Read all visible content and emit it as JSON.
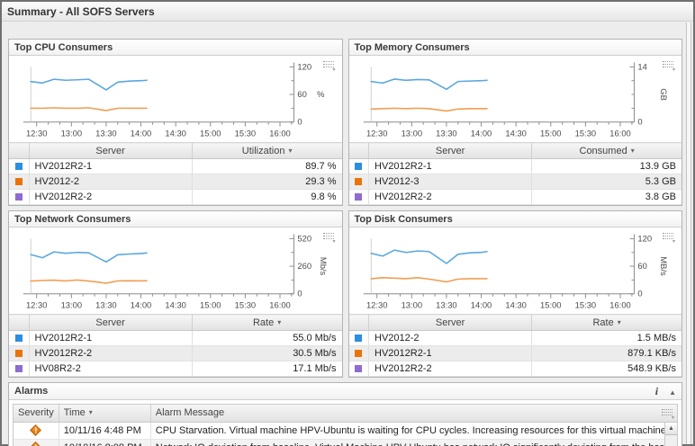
{
  "header": {
    "title": "Summary - All SOFS Servers"
  },
  "icons": {
    "sort_desc": "▾",
    "info": "i",
    "collapse": "▲",
    "scroll_up": "▲",
    "chart_options_arrow": "▾",
    "warning_glyph": "!"
  },
  "panels": [
    {
      "title": "Top CPU Consumers",
      "chart": {
        "type": "line",
        "unit": "%",
        "ylim": [
          0,
          120
        ],
        "y_ticks_labeled": [
          0,
          60,
          120
        ],
        "y_ticks_minor": [
          30,
          90
        ],
        "x_ticks_labeled": [
          "12:30",
          "13:00",
          "13:30",
          "14:00",
          "14:30",
          "15:00",
          "15:30",
          "16:00"
        ],
        "x_range": [
          "12:20",
          "16:12"
        ],
        "x": [
          "12:25",
          "12:35",
          "12:45",
          "12:55",
          "13:05",
          "13:15",
          "13:30",
          "13:40",
          "13:50",
          "14:00",
          "14:05"
        ],
        "series": [
          {
            "name": "HV2012R2-1",
            "color": "#5aa7e0",
            "values": [
              88,
              85,
              93,
              91,
              92,
              93,
              70,
              87,
              89,
              90,
              91
            ]
          },
          {
            "name": "HV2012-2",
            "color": "#f29d52",
            "values": [
              30,
              30,
              31,
              30,
              30,
              31,
              25,
              30,
              30,
              30,
              30
            ]
          }
        ]
      },
      "table": {
        "server_header": "Server",
        "value_header": "Utilization",
        "rows": [
          {
            "color": "#2b8ee0",
            "server": "HV2012R2-1",
            "value": "89.7 %"
          },
          {
            "color": "#e8730a",
            "server": "HV2012-2",
            "value": "29.3 %"
          },
          {
            "color": "#8f6cd0",
            "server": "HV2012R2-2",
            "value": "9.8 %"
          }
        ]
      }
    },
    {
      "title": "Top Memory Consumers",
      "chart": {
        "type": "line",
        "unit": "GB",
        "ylim": [
          0,
          14
        ],
        "y_ticks_labeled": [
          0,
          14
        ],
        "y_ticks_minor": [
          3.5,
          7,
          10.5
        ],
        "x_ticks_labeled": [
          "12:30",
          "13:00",
          "13:30",
          "14:00",
          "14:30",
          "15:00",
          "15:30",
          "16:00"
        ],
        "x_range": [
          "12:20",
          "16:12"
        ],
        "x": [
          "12:25",
          "12:35",
          "12:45",
          "12:55",
          "13:05",
          "13:15",
          "13:30",
          "13:40",
          "13:50",
          "14:00",
          "14:05"
        ],
        "series": [
          {
            "name": "HV2012R2-1",
            "color": "#5aa7e0",
            "values": [
              10.3,
              9.9,
              10.9,
              10.6,
              10.8,
              10.7,
              8.3,
              10.3,
              10.4,
              10.5,
              10.6
            ]
          },
          {
            "name": "HV2012-3",
            "color": "#f29d52",
            "values": [
              3.3,
              3.4,
              3.5,
              3.4,
              3.5,
              3.4,
              2.8,
              3.3,
              3.4,
              3.4,
              3.4
            ]
          }
        ]
      },
      "table": {
        "server_header": "Server",
        "value_header": "Consumed",
        "rows": [
          {
            "color": "#2b8ee0",
            "server": "HV2012R2-1",
            "value": "13.9 GB"
          },
          {
            "color": "#e8730a",
            "server": "HV2012-3",
            "value": "5.3 GB"
          },
          {
            "color": "#8f6cd0",
            "server": "HV2012R2-2",
            "value": "3.8 GB"
          }
        ]
      }
    },
    {
      "title": "Top Network Consumers",
      "chart": {
        "type": "line",
        "unit": "Mb/s",
        "ylim": [
          0,
          520
        ],
        "y_ticks_labeled": [
          0,
          260,
          520
        ],
        "y_ticks_minor": [
          130,
          390
        ],
        "x_ticks_labeled": [
          "12:30",
          "13:00",
          "13:30",
          "14:00",
          "14:30",
          "15:00",
          "15:30",
          "16:00"
        ],
        "x_range": [
          "12:20",
          "16:12"
        ],
        "x": [
          "12:25",
          "12:35",
          "12:45",
          "12:55",
          "13:05",
          "13:15",
          "13:30",
          "13:40",
          "13:50",
          "14:00",
          "14:05"
        ],
        "series": [
          {
            "name": "HV2012R2-1",
            "color": "#5aa7e0",
            "values": [
              370,
              340,
              395,
              382,
              390,
              386,
              300,
              368,
              375,
              380,
              385
            ]
          },
          {
            "name": "HV2012R2-2",
            "color": "#f29d52",
            "values": [
              120,
              126,
              128,
              122,
              130,
              120,
              100,
              122,
              123,
              122,
              123
            ]
          }
        ]
      },
      "table": {
        "server_header": "Server",
        "value_header": "Rate",
        "rows": [
          {
            "color": "#2b8ee0",
            "server": "HV2012R2-1",
            "value": "55.0 Mb/s"
          },
          {
            "color": "#e8730a",
            "server": "HV2012R2-2",
            "value": "30.5 Mb/s"
          },
          {
            "color": "#8f6cd0",
            "server": "HV08R2-2",
            "value": "17.1 Mb/s"
          }
        ]
      }
    },
    {
      "title": "Top Disk Consumers",
      "chart": {
        "type": "line",
        "unit": "MB/s",
        "ylim": [
          0,
          120
        ],
        "y_ticks_labeled": [
          0,
          60,
          120
        ],
        "y_ticks_minor": [
          30,
          90
        ],
        "x_ticks_labeled": [
          "12:30",
          "13:00",
          "13:30",
          "14:00",
          "14:30",
          "15:00",
          "15:30",
          "16:00"
        ],
        "x_range": [
          "12:20",
          "16:12"
        ],
        "x": [
          "12:25",
          "12:35",
          "12:45",
          "12:55",
          "13:05",
          "13:15",
          "13:30",
          "13:40",
          "13:50",
          "14:00",
          "14:05"
        ],
        "series": [
          {
            "name": "HV2012-2",
            "color": "#5aa7e0",
            "values": [
              88,
              82,
              95,
              90,
              93,
              92,
              66,
              86,
              89,
              90,
              92
            ]
          },
          {
            "name": "HV2012R2-1",
            "color": "#f29d52",
            "values": [
              33,
              35,
              34,
              33,
              35,
              32,
              26,
              32,
              33,
              33,
              33
            ]
          }
        ]
      },
      "table": {
        "server_header": "Server",
        "value_header": "Rate",
        "rows": [
          {
            "color": "#2b8ee0",
            "server": "HV2012-2",
            "value": "1.5 MB/s"
          },
          {
            "color": "#e8730a",
            "server": "HV2012R2-1",
            "value": "879.1 KB/s"
          },
          {
            "color": "#8f6cd0",
            "server": "HV2012R2-2",
            "value": "548.9 KB/s"
          }
        ]
      }
    }
  ],
  "alarms": {
    "title": "Alarms",
    "severity_header": "Severity",
    "time_header": "Time",
    "message_header": "Alarm Message",
    "rows": [
      {
        "time": "10/11/16 4:48 PM",
        "message": "CPU Starvation. Virtual machine HPV-Ubuntu is waiting for CPU cycles. Increasing resources for this virtual machine by adjusting t"
      },
      {
        "time": "10/10/16 8:08 PM",
        "message": "Network IO deviation from baseline. Virtual Machine HPV-Ubuntu has network IO significantly deviating from the baseline."
      }
    ]
  }
}
